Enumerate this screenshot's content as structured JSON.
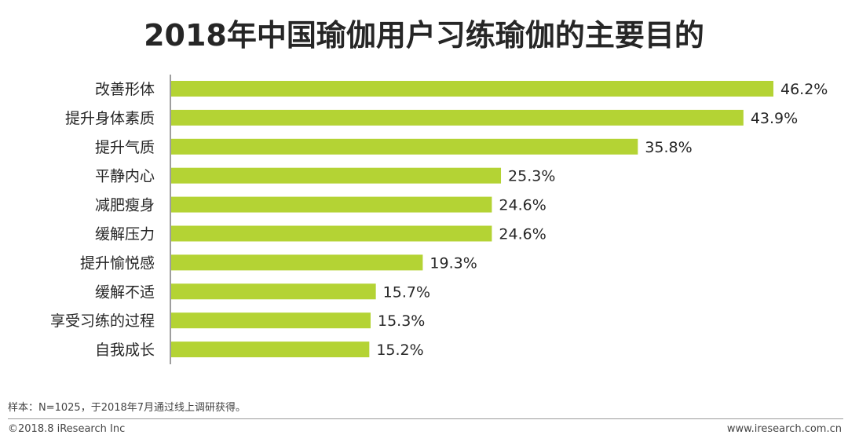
{
  "title": "2018年中国瑜伽用户习练瑜伽的主要目的",
  "chart_data": {
    "type": "bar",
    "orientation": "horizontal",
    "title": "2018年中国瑜伽用户习练瑜伽的主要目的",
    "categories": [
      "改善形体",
      "提升身体素质",
      "提升气质",
      "平静内心",
      "减肥瘦身",
      "缓解压力",
      "提升愉悦感",
      "缓解不适",
      "享受习练的过程",
      "自我成长"
    ],
    "values": [
      46.2,
      43.9,
      35.8,
      25.3,
      24.6,
      24.6,
      19.3,
      15.7,
      15.3,
      15.2
    ],
    "value_labels": [
      "46.2%",
      "43.9%",
      "35.8%",
      "25.3%",
      "24.6%",
      "24.6%",
      "19.3%",
      "15.7%",
      "15.3%",
      "15.2%"
    ],
    "unit": "%",
    "xlim": [
      0,
      50
    ],
    "bar_color": "#b4d334",
    "grid": false,
    "legend": "none"
  },
  "footer": {
    "note": "样本：N=1025，于2018年7月通过线上调研获得。",
    "copyright": "©2018.8 iResearch Inc",
    "website": "www.iresearch.com.cn"
  }
}
